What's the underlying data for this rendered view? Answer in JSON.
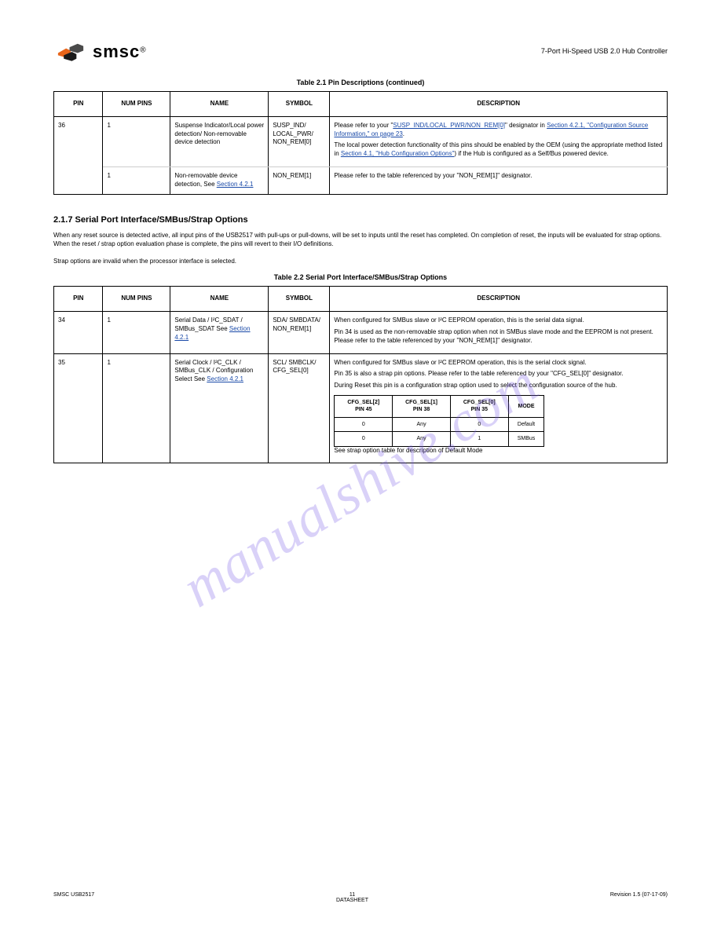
{
  "header": {
    "logo_text": "smsc",
    "logo_tm": "®",
    "doc_title_line1": "7-Port Hi-Speed USB 2.0 Hub Controller",
    "logo_colors": {
      "orange": "#e8651a",
      "dark": "#4a4a4a",
      "black": "#1a1a1a"
    }
  },
  "watermark": "manualshive.com",
  "table1": {
    "caption": "Table 2.1 Pin Descriptions  (continued)",
    "columns": [
      "PIN",
      "NUM PINS",
      "NAME",
      "SYMBOL",
      "DESCRIPTION"
    ],
    "rows": [
      {
        "pin": "36",
        "num": "1",
        "name": "Suspense Indicator/Local power detection/ Non-removable device detection",
        "sym": "SUSP_IND/ LOCAL_PWR/ NON_REM[0]",
        "desc_html": "<p>Please refer to your \"<span class=\"link\">SUSP_IND/LOCAL_PWR/NON_REM[0]</span>\" designator in <span class=\"link\">Section 4.2.1, \"Configuration Source Information,\" on page 23</span>.</p><p>The local power detection functionality of this pins should be enabled by the OEM (using the appropriate method listed in <span class=\"link\">Section 4.1, \"Hub Configuration Options\"</span>) if the Hub is configured as a Self/Bus powered device.</p>"
      },
      {
        "pin": "",
        "num": "1",
        "name": "Non-removable device detection, See <span class=\"link\">Section 4.2.1</span>",
        "sym": "NON_REM[1]",
        "desc_html": "<p>Please refer to the table referenced by your \"NON_REM[1]\" designator.</p>"
      }
    ]
  },
  "section1": {
    "title": "2.1.7   Serial Port Interface/SMBus/Strap Options",
    "p1": "When any reset source is detected active, all input pins of the USB2517 with pull-ups or pull-downs, will be set to inputs until the reset has completed. On completion of reset, the inputs will be evaluated for strap options. When the reset / strap option evaluation phase is complete, the pins will revert to their I/O definitions.",
    "p2": "Strap options are invalid when the processor interface is selected."
  },
  "table2": {
    "caption": "Table 2.2 Serial Port Interface/SMBus/Strap Options",
    "columns": [
      "PIN",
      "NUM PINS",
      "NAME",
      "SYMBOL",
      "DESCRIPTION"
    ],
    "rows": [
      {
        "pin": "34",
        "num": "1",
        "name": "Serial Data / I²C_SDAT / SMBus_SDAT See <span class=\"link\">Section 4.2.1</span>",
        "sym": "SDA/ SMBDATA/ NON_REM[1]",
        "desc_html": "<p>When configured for SMBus slave or I²C EEPROM operation, this is the serial data signal.</p><p>Pin 34 is used as the non-removable strap option when not in SMBus slave mode and the EEPROM is not present. Please refer to the table referenced by your \"NON_REM[1]\" designator.</p>"
      },
      {
        "pin": "35",
        "num": "1",
        "name": "Serial Clock / I²C_CLK / SMBus_CLK / Configuration Select See <span class=\"link\">Section 4.2.1</span>",
        "sym": "SCL/ SMBCLK/ CFG_SEL[0]",
        "desc_html": "<p>When configured for SMBus slave or I²C EEPROM operation, this is the serial clock signal.</p><p>Pin 35 is also a strap pin options. Please refer to the table referenced by your \"CFG_SEL[0]\" designator.</p><p>During Reset this pin is a configuration strap option used to select the configuration source of the hub.</p>"
      }
    ],
    "inner_table": {
      "headers": [
        "CFG_SEL[2]\nPIN 45",
        "CFG_SEL[1]\nPIN 38",
        "CFG_SEL[0]\nPIN 35",
        "MODE"
      ],
      "rows": [
        [
          "0",
          "Any",
          "0",
          "Default"
        ],
        [
          "0",
          "Any",
          "1",
          "SMBus"
        ]
      ]
    },
    "tail_html": "<p>See strap option table for description of Default Mode</p>"
  },
  "footer": {
    "left": "SMSC USB2517",
    "center_line1": "11",
    "center_line2": "DATASHEET",
    "right": "Revision 1.5 (07-17-09)"
  }
}
